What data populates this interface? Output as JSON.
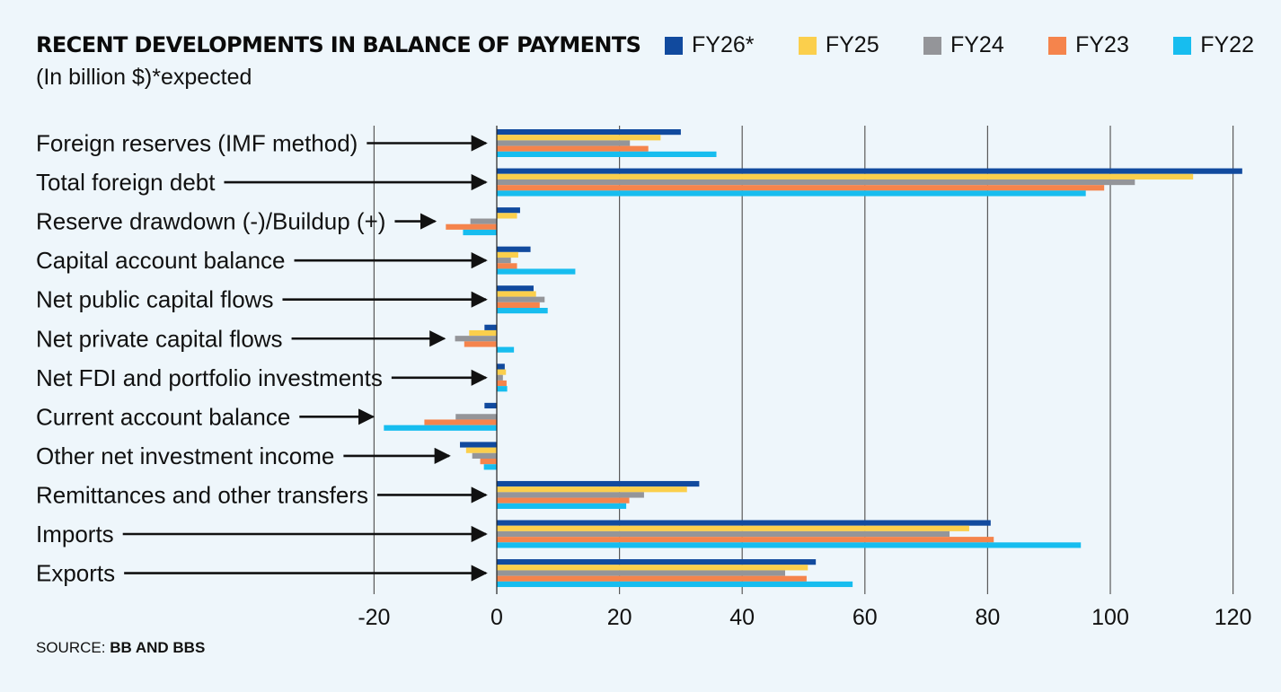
{
  "title": "RECENT DEVELOPMENTS IN BALANCE OF PAYMENTS",
  "subtitle": "(In billion $)*expected",
  "source": {
    "prefix": "SOURCE: ",
    "value": "BB AND BBS"
  },
  "colors": {
    "FY26*": "#114a9e",
    "FY25": "#fbcf4c",
    "FY24": "#949599",
    "FY23": "#f5844c",
    "FY22": "#17bdef",
    "gridline": "#5a5a5a",
    "background": "#eef6fb"
  },
  "chart_data": {
    "type": "bar",
    "orientation": "horizontal",
    "title": "RECENT DEVELOPMENTS IN BALANCE OF PAYMENTS",
    "subtitle": "(In billion $)*expected",
    "categories": [
      "Foreign reserves (IMF method)",
      "Total foreign debt",
      "Reserve drawdown (-)/Buildup (+)",
      "Capital account balance",
      "Net public capital flows",
      "Net private capital flows",
      "Net FDI and portfolio investments",
      "Current account balance",
      "Other net investment income",
      "Remittances and other transfers",
      "Imports",
      "Exports"
    ],
    "series": [
      {
        "name": "FY26*",
        "values": [
          30,
          121.5,
          3.8,
          5.5,
          6,
          -2,
          1.3,
          -2,
          -6,
          33,
          80.5,
          52
        ]
      },
      {
        "name": "FY25",
        "values": [
          26.7,
          113.5,
          3.3,
          3.5,
          6.4,
          -4.5,
          1.5,
          0,
          -5,
          31,
          77,
          50.7
        ]
      },
      {
        "name": "FY24",
        "values": [
          21.7,
          104,
          -4.3,
          2.3,
          7.8,
          -6.8,
          1,
          -6.7,
          -4,
          24,
          73.8,
          47
        ]
      },
      {
        "name": "FY23",
        "values": [
          24.7,
          99,
          -8.3,
          3.3,
          7,
          -5.3,
          1.6,
          -11.8,
          -2.7,
          21.6,
          81,
          50.5
        ]
      },
      {
        "name": "FY22",
        "values": [
          35.8,
          96,
          -5.5,
          12.8,
          8.3,
          2.8,
          1.7,
          -18.4,
          -2.1,
          21.1,
          95.2,
          58
        ]
      }
    ],
    "xlim": [
      -20,
      122
    ],
    "xticks": [
      -20,
      0,
      20,
      40,
      60,
      80,
      100,
      120
    ],
    "xlabel": "",
    "ylabel": "",
    "grid": "vertical",
    "legend": "top-right"
  }
}
